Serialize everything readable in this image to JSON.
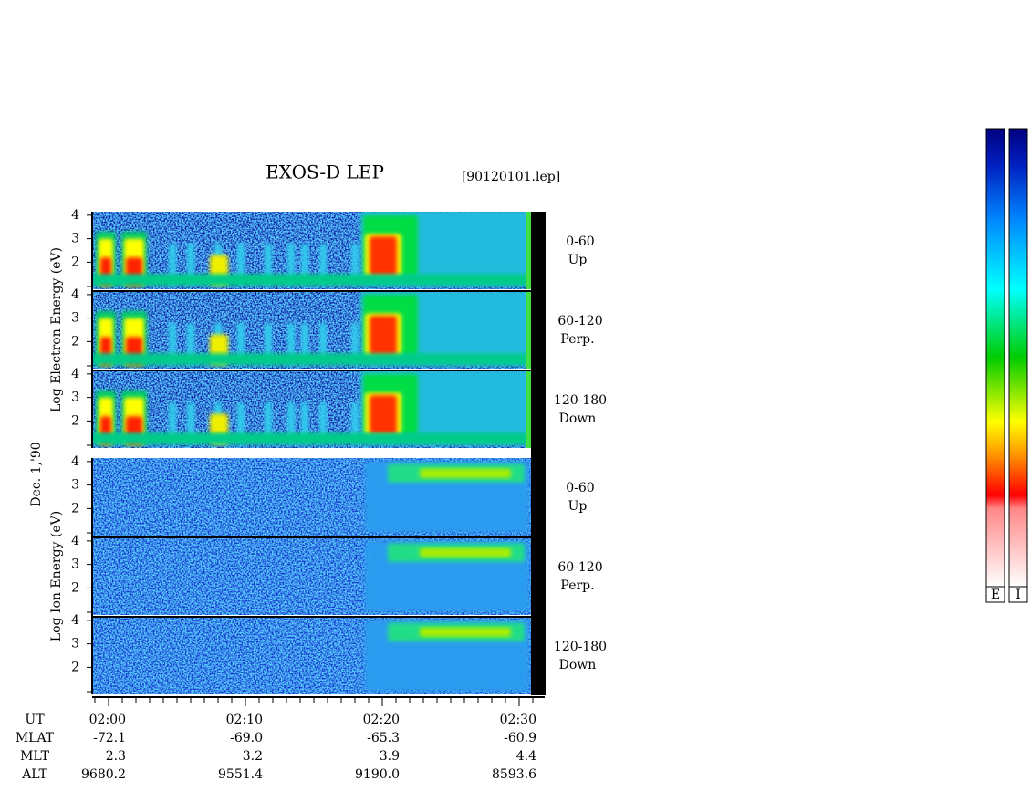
{
  "header": {
    "title": "EXOS-D LEP",
    "file": "[90120101.lep]"
  },
  "date_label": "Dec. 1,'90",
  "groups": [
    {
      "axis_label": "Log  Electron  Energy (eV)",
      "panels": [
        {
          "label": "0-60",
          "sublabel": "Up"
        },
        {
          "label": "60-120",
          "sublabel": "Perp."
        },
        {
          "label": "120-180",
          "sublabel": "Down"
        }
      ]
    },
    {
      "axis_label": "Log  Ion  Energy (eV)",
      "panels": [
        {
          "label": "0-60",
          "sublabel": "Up"
        },
        {
          "label": "60-120",
          "sublabel": "Perp."
        },
        {
          "label": "120-180",
          "sublabel": "Down"
        }
      ]
    }
  ],
  "ylim": [
    0.85,
    4.15
  ],
  "yticks": [
    2,
    3,
    4
  ],
  "table": {
    "rows": [
      [
        "UT",
        "02:00",
        "02:10",
        "02:20",
        "02:30"
      ],
      [
        "MLAT",
        "-72.1",
        "-69.0",
        "-65.3",
        "-60.9"
      ],
      [
        "MLT",
        "2.3",
        "3.2",
        "3.9",
        "4.4"
      ],
      [
        "ALT",
        "9680.2",
        "9551.4",
        "9190.0",
        "8593.6"
      ]
    ]
  },
  "colorbars": [
    "E",
    "I"
  ]
}
